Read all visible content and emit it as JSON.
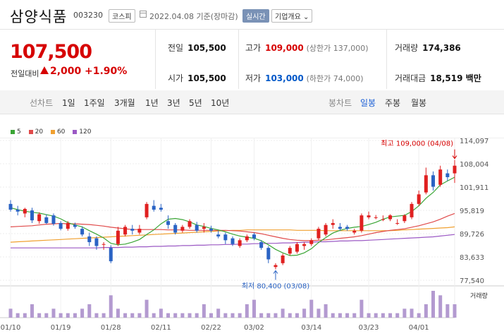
{
  "header": {
    "name": "삼양식품",
    "code": "003230",
    "market": "코스피",
    "date": "2022.04.08 기준(장마감)",
    "realtime_label": "실시간",
    "overview_label": "기업개요 ⌄"
  },
  "price": {
    "current": "107,500",
    "change_label": "전일대비",
    "change": "2,000",
    "change_pct": "+1.90%"
  },
  "stats": {
    "prev_label": "전일",
    "prev": "105,500",
    "open_label": "시가",
    "open": "105,500",
    "high_label": "고가",
    "high": "109,000",
    "high_sub": "(상한가 137,000)",
    "low_label": "저가",
    "low": "103,000",
    "low_sub": "(하한가 74,000)",
    "volume_label": "거래량",
    "volume": "174,386",
    "amount_label": "거래대금",
    "amount": "18,519 백만"
  },
  "tabs": {
    "line_label": "선차트",
    "line": [
      "1일",
      "1주일",
      "3개월",
      "1년",
      "3년",
      "5년",
      "10년"
    ],
    "candle_label": "봉차트",
    "candle": [
      "일봉",
      "주봉",
      "월봉"
    ],
    "active_candle": "일봉"
  },
  "legend": [
    {
      "name": "5",
      "color": "#3aa535"
    },
    {
      "name": "20",
      "color": "#e04a4a"
    },
    {
      "name": "60",
      "color": "#f0a030"
    },
    {
      "name": "120",
      "color": "#9b59c4"
    }
  ],
  "chart_data": {
    "type": "candlestick",
    "y_ticks": [
      "114,097",
      "108,004",
      "101,911",
      "95,819",
      "89,726",
      "83,633",
      "77,540"
    ],
    "ylim": [
      77540,
      114097
    ],
    "x_ticks": [
      "01/10",
      "01/19",
      "01/28",
      "02/11",
      "02/22",
      "03/02",
      "03/14",
      "03/23",
      "04/01"
    ],
    "x_tick_index": [
      0,
      7,
      14,
      21,
      28,
      34,
      42,
      50,
      57
    ],
    "annotation_high": "최고 109,000 (04/08)",
    "annotation_low": "최저 80,400 (03/08)",
    "volume_label": "거래량",
    "candles": [
      {
        "o": 97500,
        "h": 98500,
        "l": 95500,
        "c": 96000
      },
      {
        "o": 96000,
        "h": 97000,
        "l": 94500,
        "c": 95500
      },
      {
        "o": 95000,
        "h": 96500,
        "l": 94000,
        "c": 96200
      },
      {
        "o": 95800,
        "h": 96500,
        "l": 92500,
        "c": 93200
      },
      {
        "o": 93000,
        "h": 95300,
        "l": 92300,
        "c": 94800
      },
      {
        "o": 94000,
        "h": 94800,
        "l": 92200,
        "c": 92500
      },
      {
        "o": 94500,
        "h": 95000,
        "l": 91800,
        "c": 92300
      },
      {
        "o": 92500,
        "h": 93000,
        "l": 90600,
        "c": 91000
      },
      {
        "o": 91000,
        "h": 93000,
        "l": 90500,
        "c": 92500
      },
      {
        "o": 92000,
        "h": 92600,
        "l": 91000,
        "c": 91500
      },
      {
        "o": 91000,
        "h": 91600,
        "l": 89000,
        "c": 89500
      },
      {
        "o": 89000,
        "h": 90000,
        "l": 86500,
        "c": 87500
      },
      {
        "o": 88500,
        "h": 89000,
        "l": 85500,
        "c": 86500
      },
      {
        "o": 87000,
        "h": 87500,
        "l": 85500,
        "c": 87000
      },
      {
        "o": 86000,
        "h": 86700,
        "l": 82000,
        "c": 82500
      },
      {
        "o": 87000,
        "h": 91500,
        "l": 86500,
        "c": 90500
      },
      {
        "o": 89500,
        "h": 92000,
        "l": 89000,
        "c": 91500
      },
      {
        "o": 91000,
        "h": 92000,
        "l": 89500,
        "c": 90500
      },
      {
        "o": 90000,
        "h": 92000,
        "l": 89500,
        "c": 91000
      },
      {
        "o": 94000,
        "h": 98000,
        "l": 93500,
        "c": 97500
      },
      {
        "o": 97000,
        "h": 98500,
        "l": 95500,
        "c": 96000
      },
      {
        "o": 96500,
        "h": 97500,
        "l": 95500,
        "c": 96000
      },
      {
        "o": 93000,
        "h": 94500,
        "l": 91000,
        "c": 92000
      },
      {
        "o": 92000,
        "h": 92500,
        "l": 89500,
        "c": 90000
      },
      {
        "o": 90500,
        "h": 92000,
        "l": 90000,
        "c": 91500
      },
      {
        "o": 91500,
        "h": 93500,
        "l": 91000,
        "c": 93000
      },
      {
        "o": 92000,
        "h": 92800,
        "l": 90000,
        "c": 90500
      },
      {
        "o": 91000,
        "h": 92500,
        "l": 90000,
        "c": 91500
      },
      {
        "o": 91000,
        "h": 91800,
        "l": 90000,
        "c": 90500
      },
      {
        "o": 89500,
        "h": 90500,
        "l": 88500,
        "c": 89000
      },
      {
        "o": 89500,
        "h": 90000,
        "l": 87000,
        "c": 88000
      },
      {
        "o": 88500,
        "h": 89000,
        "l": 86500,
        "c": 87000
      },
      {
        "o": 86500,
        "h": 88500,
        "l": 86000,
        "c": 88000
      },
      {
        "o": 88000,
        "h": 89500,
        "l": 87500,
        "c": 89000
      },
      {
        "o": 89500,
        "h": 90000,
        "l": 88000,
        "c": 88500
      },
      {
        "o": 87500,
        "h": 88000,
        "l": 85500,
        "c": 86000
      },
      {
        "o": 86000,
        "h": 86500,
        "l": 82000,
        "c": 83000
      },
      {
        "o": 81000,
        "h": 82000,
        "l": 80400,
        "c": 81500
      },
      {
        "o": 82000,
        "h": 84500,
        "l": 81500,
        "c": 84000
      },
      {
        "o": 84500,
        "h": 86500,
        "l": 84000,
        "c": 86000
      },
      {
        "o": 85000,
        "h": 87500,
        "l": 84500,
        "c": 87000
      },
      {
        "o": 86500,
        "h": 87500,
        "l": 85500,
        "c": 87000
      },
      {
        "o": 87000,
        "h": 88500,
        "l": 86500,
        "c": 88000
      },
      {
        "o": 88500,
        "h": 91500,
        "l": 88000,
        "c": 91000
      },
      {
        "o": 89500,
        "h": 92500,
        "l": 89000,
        "c": 92000
      },
      {
        "o": 92000,
        "h": 93500,
        "l": 91000,
        "c": 92500
      },
      {
        "o": 91500,
        "h": 92500,
        "l": 90500,
        "c": 91000
      },
      {
        "o": 91500,
        "h": 92000,
        "l": 90500,
        "c": 91000
      },
      {
        "o": 90000,
        "h": 91000,
        "l": 89500,
        "c": 90500
      },
      {
        "o": 90500,
        "h": 95000,
        "l": 90000,
        "c": 94500
      },
      {
        "o": 94000,
        "h": 95500,
        "l": 93500,
        "c": 94500
      },
      {
        "o": 94000,
        "h": 94600,
        "l": 93500,
        "c": 94000
      },
      {
        "o": 93500,
        "h": 94500,
        "l": 93000,
        "c": 93500
      },
      {
        "o": 93500,
        "h": 94800,
        "l": 93000,
        "c": 94500
      },
      {
        "o": 92500,
        "h": 93500,
        "l": 92000,
        "c": 92500
      },
      {
        "o": 93000,
        "h": 94800,
        "l": 92500,
        "c": 94500
      },
      {
        "o": 94000,
        "h": 98000,
        "l": 93500,
        "c": 97500
      },
      {
        "o": 97500,
        "h": 101000,
        "l": 97000,
        "c": 100000
      },
      {
        "o": 100500,
        "h": 107000,
        "l": 100000,
        "c": 105000
      },
      {
        "o": 105000,
        "h": 106000,
        "l": 101000,
        "c": 102000
      },
      {
        "o": 102500,
        "h": 107500,
        "l": 102000,
        "c": 106500
      },
      {
        "o": 105500,
        "h": 106500,
        "l": 103500,
        "c": 104500
      },
      {
        "o": 105500,
        "h": 109000,
        "l": 103000,
        "c": 107500
      }
    ],
    "ma5": [
      96500,
      96000,
      95600,
      95300,
      95100,
      94700,
      94300,
      93600,
      92600,
      92000,
      91500,
      90500,
      89600,
      88600,
      87200,
      86800,
      87000,
      87500,
      88200,
      89500,
      90700,
      92300,
      93500,
      93700,
      93400,
      92800,
      92000,
      91600,
      91100,
      90700,
      90200,
      89600,
      89100,
      88800,
      88500,
      87900,
      86800,
      85600,
      84700,
      84000,
      84100,
      84700,
      85800,
      87400,
      88700,
      89900,
      90600,
      91100,
      91400,
      91600,
      92100,
      92700,
      93500,
      94100,
      94300,
      94500,
      95500,
      97000,
      99000,
      100500,
      102500,
      103500,
      104500
    ],
    "ma20": [
      91500,
      91600,
      91700,
      91800,
      92000,
      92200,
      92300,
      92400,
      92300,
      92300,
      92200,
      92100,
      91900,
      91700,
      91400,
      91200,
      91000,
      90800,
      90800,
      90800,
      90800,
      90800,
      90700,
      90700,
      90700,
      90600,
      90600,
      90600,
      90600,
      90600,
      90600,
      90500,
      90400,
      90200,
      90000,
      89700,
      89300,
      88900,
      88500,
      88200,
      88000,
      87900,
      87900,
      88000,
      88100,
      88300,
      88500,
      88700,
      88900,
      89200,
      89600,
      90000,
      90300,
      90600,
      90800,
      91000,
      91400,
      91800,
      92300,
      92800,
      93500,
      94300,
      95000
    ],
    "ma60": [
      87500,
      87600,
      87700,
      87800,
      87900,
      88000,
      88100,
      88200,
      88300,
      88400,
      88500,
      88600,
      88700,
      88800,
      88900,
      89000,
      89100,
      89200,
      89300,
      89400,
      89500,
      89600,
      89700,
      89800,
      89900,
      90000,
      90100,
      90200,
      90300,
      90400,
      90500,
      90600,
      90600,
      90700,
      90700,
      90700,
      90700,
      90700,
      90700,
      90700,
      90600,
      90600,
      90600,
      90600,
      90500,
      90500,
      90500,
      90500,
      90500,
      90500,
      90500,
      90500,
      90500,
      90500,
      90600,
      90700,
      90800,
      90900,
      91000,
      91100,
      91200,
      91300,
      91500
    ],
    "ma120": [
      86000,
      86000,
      86000,
      86000,
      86000,
      86000,
      86000,
      86000,
      86000,
      86000,
      86000,
      86000,
      86000,
      86100,
      86100,
      86100,
      86200,
      86200,
      86300,
      86300,
      86400,
      86400,
      86500,
      86500,
      86600,
      86600,
      86700,
      86700,
      86800,
      86800,
      86900,
      86900,
      87000,
      87000,
      87100,
      87100,
      87200,
      87200,
      87300,
      87300,
      87400,
      87500,
      87500,
      87600,
      87600,
      87700,
      87800,
      87800,
      87900,
      87900,
      88000,
      88100,
      88200,
      88300,
      88400,
      88500,
      88600,
      88700,
      88800,
      88900,
      89100,
      89300,
      89500
    ],
    "volume": [
      2,
      1,
      1,
      3,
      1,
      1,
      2,
      1,
      1,
      1,
      2,
      3,
      1,
      1,
      5,
      2,
      1,
      1,
      1,
      4,
      1,
      2,
      1,
      1,
      1,
      1,
      1,
      3,
      1,
      2,
      1,
      1,
      1,
      3,
      4,
      1,
      1,
      1,
      2,
      1,
      1,
      2,
      4,
      2,
      3,
      1,
      1,
      1,
      1,
      4,
      1,
      1,
      1,
      1,
      1,
      2,
      2,
      1,
      3,
      6,
      5,
      3,
      3
    ]
  }
}
